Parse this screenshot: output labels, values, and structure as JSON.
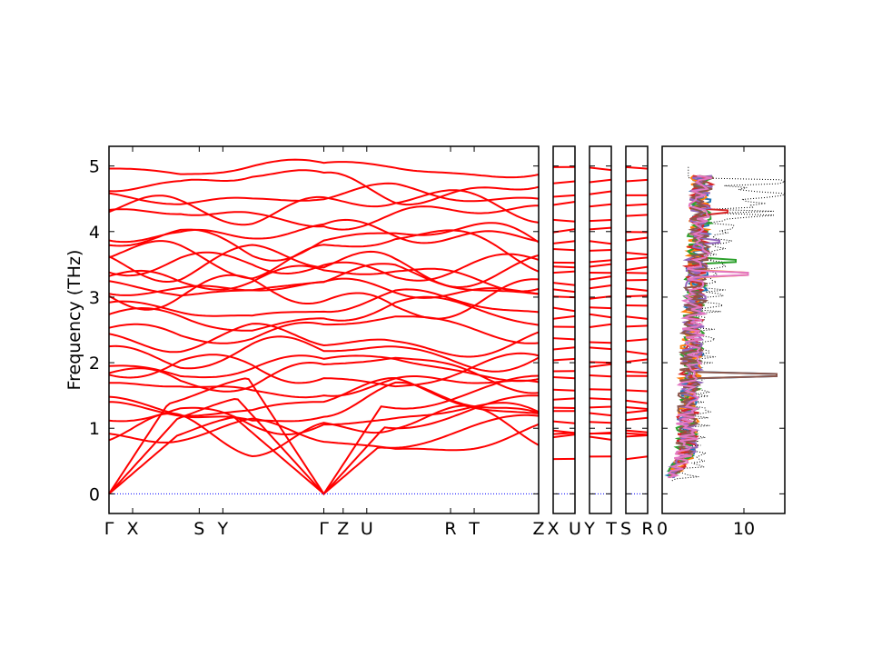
{
  "chart_data": {
    "type": "line",
    "title": "",
    "ylabel": "Frequency (THz)",
    "ylim": [
      -0.3,
      5.3
    ],
    "yticks": [
      0,
      1,
      2,
      3,
      4,
      5
    ],
    "band_color": "#ff0000",
    "zero_line_color": "#0000ff",
    "dos_total_color": "#000000",
    "segments": [
      {
        "labels": [
          "Γ",
          "X",
          "S",
          "Y",
          "Γ",
          "Z",
          "U",
          "R",
          "T",
          "Z"
        ],
        "label_positions": [
          0.0,
          0.11,
          0.42,
          0.53,
          1.0,
          1.09,
          1.2,
          1.59,
          1.7,
          2.0
        ]
      },
      {
        "labels": [
          "X",
          "U"
        ],
        "label_positions": [
          0.0,
          1.0
        ]
      },
      {
        "labels": [
          "Y",
          "T"
        ],
        "label_positions": [
          0.0,
          1.0
        ]
      },
      {
        "labels": [
          "S",
          "R"
        ],
        "label_positions": [
          0.0,
          1.0
        ]
      }
    ],
    "gamma_point_frequencies": [
      0.0,
      0.0,
      0.0,
      0.85,
      0.95,
      1.1,
      1.3,
      1.45,
      1.6,
      1.8,
      1.9,
      2.0,
      2.2,
      2.35,
      2.55,
      2.7,
      2.85,
      3.0,
      3.15,
      3.25,
      3.35,
      3.45,
      3.55,
      3.7,
      3.85,
      4.0,
      4.2,
      4.4,
      4.55,
      4.75,
      5.0
    ],
    "dos": {
      "xlim": [
        0,
        15
      ],
      "xticks": [
        0,
        10
      ],
      "colors": [
        "#1f77b4",
        "#ff7f0e",
        "#2ca02c",
        "#d62728",
        "#9467bd",
        "#8c564b",
        "#e377c2"
      ],
      "peaks": [
        {
          "freq": 1.8,
          "value": 14.0
        },
        {
          "freq": 3.35,
          "value": 10.5
        },
        {
          "freq": 3.55,
          "value": 9.0
        },
        {
          "freq": 4.3,
          "value": 8.0
        },
        {
          "freq": 3.85,
          "value": 7.0
        }
      ]
    }
  }
}
